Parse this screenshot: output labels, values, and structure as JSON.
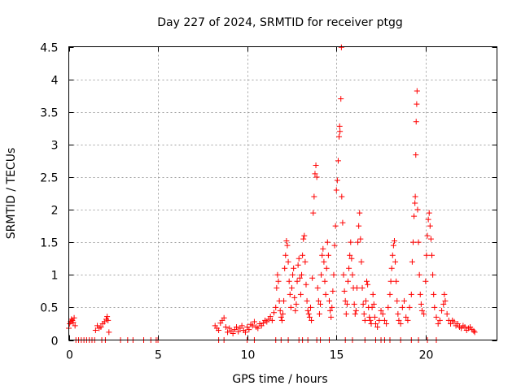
{
  "chart_data": {
    "type": "scatter",
    "title": "Day 227 of 2024, SRMTID for receiver ptgg",
    "xlabel": "GPS time / hours",
    "ylabel": "SRMTID / TECUs",
    "xlim": [
      0,
      24
    ],
    "ylim": [
      0,
      4.5
    ],
    "x_ticks": [
      0,
      5,
      10,
      15,
      20
    ],
    "x_tick_labels": [
      "0",
      "5",
      "10",
      "15",
      "20"
    ],
    "y_ticks": [
      0,
      0.5,
      1,
      1.5,
      2,
      2.5,
      3,
      3.5,
      4,
      4.5
    ],
    "y_tick_labels": [
      "0",
      "0.5",
      "1",
      "1.5",
      "2",
      "2.5",
      "3",
      "3.5",
      "4",
      "4.5"
    ],
    "grid": true,
    "marker": "plus",
    "series": [
      {
        "name": "SRMTID",
        "color": "#ff0000",
        "points": [
          [
            0.0,
            0.18
          ],
          [
            0.05,
            0.25
          ],
          [
            0.1,
            0.28
          ],
          [
            0.15,
            0.32
          ],
          [
            0.2,
            0.3
          ],
          [
            0.25,
            0.27
          ],
          [
            0.3,
            0.34
          ],
          [
            0.35,
            0.22
          ],
          [
            0.4,
            0.0
          ],
          [
            0.55,
            0.0
          ],
          [
            0.7,
            0.0
          ],
          [
            0.85,
            0.0
          ],
          [
            1.0,
            0.0
          ],
          [
            1.15,
            0.0
          ],
          [
            1.3,
            0.0
          ],
          [
            1.45,
            0.0
          ],
          [
            1.5,
            0.15
          ],
          [
            1.6,
            0.22
          ],
          [
            1.7,
            0.18
          ],
          [
            1.8,
            0.2
          ],
          [
            1.9,
            0.25
          ],
          [
            2.0,
            0.28
          ],
          [
            2.1,
            0.32
          ],
          [
            2.15,
            0.36
          ],
          [
            2.2,
            0.3
          ],
          [
            2.25,
            0.12
          ],
          [
            1.85,
            0.0
          ],
          [
            2.05,
            0.0
          ],
          [
            2.9,
            0.0
          ],
          [
            3.3,
            0.0
          ],
          [
            3.6,
            0.0
          ],
          [
            4.2,
            0.0
          ],
          [
            4.6,
            0.0
          ],
          [
            4.9,
            0.0
          ],
          [
            5.0,
            0.0
          ],
          [
            8.2,
            0.22
          ],
          [
            8.3,
            0.18
          ],
          [
            8.4,
            0.15
          ],
          [
            8.5,
            0.26
          ],
          [
            8.6,
            0.3
          ],
          [
            8.7,
            0.34
          ],
          [
            8.8,
            0.2
          ],
          [
            8.9,
            0.12
          ],
          [
            9.0,
            0.18
          ],
          [
            9.1,
            0.14
          ],
          [
            9.2,
            0.1
          ],
          [
            9.3,
            0.16
          ],
          [
            9.4,
            0.2
          ],
          [
            9.5,
            0.13
          ],
          [
            9.6,
            0.18
          ],
          [
            9.7,
            0.22
          ],
          [
            9.8,
            0.15
          ],
          [
            9.9,
            0.12
          ],
          [
            10.0,
            0.2
          ],
          [
            10.1,
            0.16
          ],
          [
            10.2,
            0.24
          ],
          [
            10.3,
            0.22
          ],
          [
            10.4,
            0.28
          ],
          [
            10.5,
            0.2
          ],
          [
            10.6,
            0.18
          ],
          [
            10.7,
            0.25
          ],
          [
            8.4,
            0.0
          ],
          [
            8.7,
            0.0
          ],
          [
            10.0,
            0.0
          ],
          [
            10.4,
            0.0
          ],
          [
            10.8,
            0.22
          ],
          [
            10.9,
            0.26
          ],
          [
            11.0,
            0.3
          ],
          [
            11.1,
            0.28
          ],
          [
            11.2,
            0.32
          ],
          [
            11.3,
            0.36
          ],
          [
            11.4,
            0.3
          ],
          [
            11.5,
            0.42
          ],
          [
            11.6,
            0.5
          ],
          [
            11.65,
            0.8
          ],
          [
            11.7,
            1.0
          ],
          [
            11.75,
            0.9
          ],
          [
            11.8,
            0.6
          ],
          [
            11.85,
            0.45
          ],
          [
            11.9,
            0.35
          ],
          [
            11.95,
            0.3
          ],
          [
            12.0,
            0.4
          ],
          [
            12.05,
            0.6
          ],
          [
            12.1,
            1.1
          ],
          [
            12.15,
            1.3
          ],
          [
            12.2,
            1.52
          ],
          [
            12.25,
            1.45
          ],
          [
            12.3,
            1.2
          ],
          [
            12.35,
            0.9
          ],
          [
            12.4,
            0.7
          ],
          [
            12.45,
            0.5
          ],
          [
            12.5,
            0.8
          ],
          [
            12.55,
            1.0
          ],
          [
            12.6,
            1.1
          ],
          [
            12.65,
            0.65
          ],
          [
            12.7,
            0.45
          ],
          [
            12.75,
            0.55
          ],
          [
            12.8,
            0.9
          ],
          [
            12.85,
            1.15
          ],
          [
            12.9,
            1.25
          ],
          [
            12.95,
            0.95
          ],
          [
            13.0,
            0.7
          ],
          [
            13.05,
            1.0
          ],
          [
            13.1,
            1.3
          ],
          [
            13.15,
            1.55
          ],
          [
            13.2,
            1.6
          ],
          [
            13.25,
            1.2
          ],
          [
            13.3,
            0.85
          ],
          [
            13.35,
            0.6
          ],
          [
            13.4,
            0.45
          ],
          [
            13.45,
            0.4
          ],
          [
            13.5,
            0.35
          ],
          [
            13.55,
            0.5
          ],
          [
            13.6,
            0.3
          ],
          [
            13.65,
            0.95
          ],
          [
            13.7,
            1.95
          ],
          [
            13.75,
            2.2
          ],
          [
            13.8,
            2.55
          ],
          [
            13.85,
            2.68
          ],
          [
            13.9,
            2.5
          ],
          [
            13.95,
            0.8
          ],
          [
            14.0,
            0.6
          ],
          [
            14.05,
            0.4
          ],
          [
            14.1,
            0.55
          ],
          [
            14.15,
            1.0
          ],
          [
            14.2,
            1.3
          ],
          [
            14.25,
            1.4
          ],
          [
            14.3,
            1.2
          ],
          [
            14.35,
            0.9
          ],
          [
            14.4,
            0.7
          ],
          [
            14.45,
            1.1
          ],
          [
            14.5,
            1.5
          ],
          [
            14.55,
            1.3
          ],
          [
            14.6,
            0.6
          ],
          [
            14.65,
            0.45
          ],
          [
            14.7,
            0.35
          ],
          [
            14.75,
            0.5
          ],
          [
            14.8,
            0.75
          ],
          [
            14.85,
            1.0
          ],
          [
            14.9,
            1.45
          ],
          [
            14.95,
            1.75
          ],
          [
            15.0,
            2.3
          ],
          [
            15.05,
            2.45
          ],
          [
            15.1,
            2.75
          ],
          [
            15.15,
            3.12
          ],
          [
            15.18,
            3.28
          ],
          [
            15.2,
            3.2
          ],
          [
            15.25,
            3.7
          ],
          [
            15.28,
            4.49
          ],
          [
            15.3,
            2.2
          ],
          [
            15.35,
            1.8
          ],
          [
            15.4,
            1.0
          ],
          [
            15.45,
            0.75
          ],
          [
            15.5,
            0.6
          ],
          [
            15.55,
            0.4
          ],
          [
            15.6,
            0.55
          ],
          [
            15.65,
            0.9
          ],
          [
            15.7,
            1.1
          ],
          [
            15.75,
            1.3
          ],
          [
            15.8,
            1.5
          ],
          [
            15.85,
            1.25
          ],
          [
            15.9,
            1.0
          ],
          [
            15.95,
            0.8
          ],
          [
            16.0,
            0.55
          ],
          [
            16.05,
            0.4
          ],
          [
            16.1,
            0.45
          ],
          [
            16.15,
            0.8
          ],
          [
            16.2,
            1.5
          ],
          [
            16.25,
            1.75
          ],
          [
            16.3,
            1.95
          ],
          [
            16.35,
            1.55
          ],
          [
            16.4,
            1.2
          ],
          [
            16.45,
            0.8
          ],
          [
            16.5,
            0.55
          ],
          [
            16.55,
            0.4
          ],
          [
            16.6,
            0.3
          ],
          [
            16.65,
            0.6
          ],
          [
            16.7,
            0.9
          ],
          [
            16.75,
            0.85
          ],
          [
            16.8,
            0.5
          ],
          [
            16.85,
            0.35
          ],
          [
            16.9,
            0.3
          ],
          [
            16.95,
            0.25
          ],
          [
            17.0,
            0.5
          ],
          [
            17.05,
            0.7
          ],
          [
            17.1,
            0.55
          ],
          [
            17.15,
            0.35
          ],
          [
            17.2,
            0.25
          ],
          [
            17.3,
            0.2
          ],
          [
            17.4,
            0.3
          ],
          [
            17.5,
            0.45
          ],
          [
            17.6,
            0.4
          ],
          [
            17.7,
            0.3
          ],
          [
            17.8,
            0.25
          ],
          [
            17.9,
            0.5
          ],
          [
            18.0,
            0.7
          ],
          [
            18.05,
            0.9
          ],
          [
            18.1,
            1.1
          ],
          [
            18.15,
            1.3
          ],
          [
            18.2,
            1.45
          ],
          [
            18.25,
            1.52
          ],
          [
            18.3,
            1.2
          ],
          [
            18.35,
            0.9
          ],
          [
            18.4,
            0.6
          ],
          [
            18.45,
            0.4
          ],
          [
            18.5,
            0.3
          ],
          [
            18.6,
            0.25
          ],
          [
            18.7,
            0.5
          ],
          [
            18.8,
            0.6
          ],
          [
            18.9,
            0.35
          ],
          [
            19.0,
            0.3
          ],
          [
            19.1,
            0.5
          ],
          [
            19.2,
            0.7
          ],
          [
            19.25,
            1.2
          ],
          [
            19.3,
            1.5
          ],
          [
            19.35,
            1.9
          ],
          [
            19.4,
            2.1
          ],
          [
            19.42,
            2.2
          ],
          [
            19.45,
            2.84
          ],
          [
            19.47,
            3.35
          ],
          [
            19.5,
            3.62
          ],
          [
            19.52,
            3.82
          ],
          [
            19.55,
            2.0
          ],
          [
            19.6,
            1.5
          ],
          [
            19.65,
            1.0
          ],
          [
            19.7,
            0.7
          ],
          [
            19.75,
            0.55
          ],
          [
            19.8,
            0.45
          ],
          [
            19.9,
            0.4
          ],
          [
            20.0,
            0.9
          ],
          [
            20.05,
            1.3
          ],
          [
            20.1,
            1.6
          ],
          [
            20.15,
            1.85
          ],
          [
            20.2,
            1.95
          ],
          [
            20.25,
            1.75
          ],
          [
            20.3,
            1.55
          ],
          [
            20.35,
            1.3
          ],
          [
            20.4,
            1.0
          ],
          [
            20.45,
            0.7
          ],
          [
            20.5,
            0.5
          ],
          [
            20.6,
            0.35
          ],
          [
            20.7,
            0.25
          ],
          [
            20.8,
            0.3
          ],
          [
            20.9,
            0.45
          ],
          [
            21.0,
            0.55
          ],
          [
            21.05,
            0.7
          ],
          [
            21.1,
            0.6
          ],
          [
            21.2,
            0.4
          ],
          [
            21.3,
            0.3
          ],
          [
            21.4,
            0.25
          ],
          [
            21.5,
            0.3
          ],
          [
            21.6,
            0.28
          ],
          [
            21.7,
            0.22
          ],
          [
            21.8,
            0.25
          ],
          [
            21.9,
            0.2
          ],
          [
            22.0,
            0.18
          ],
          [
            22.1,
            0.22
          ],
          [
            22.2,
            0.2
          ],
          [
            22.3,
            0.15
          ],
          [
            22.4,
            0.18
          ],
          [
            22.5,
            0.2
          ],
          [
            22.6,
            0.16
          ],
          [
            22.7,
            0.14
          ],
          [
            22.75,
            0.12
          ],
          [
            11.6,
            0.0
          ],
          [
            11.9,
            0.0
          ],
          [
            12.3,
            0.0
          ],
          [
            12.9,
            0.0
          ],
          [
            13.1,
            0.0
          ],
          [
            13.4,
            0.0
          ],
          [
            13.9,
            0.0
          ],
          [
            14.1,
            0.0
          ],
          [
            14.6,
            0.0
          ],
          [
            15.5,
            0.0
          ],
          [
            15.9,
            0.0
          ],
          [
            16.6,
            0.0
          ],
          [
            17.2,
            0.0
          ],
          [
            17.5,
            0.0
          ],
          [
            17.7,
            0.0
          ],
          [
            18.0,
            0.0
          ],
          [
            18.6,
            0.0
          ],
          [
            19.2,
            0.0
          ],
          [
            19.6,
            0.0
          ],
          [
            20.1,
            0.0
          ],
          [
            20.6,
            0.0
          ]
        ]
      }
    ]
  }
}
